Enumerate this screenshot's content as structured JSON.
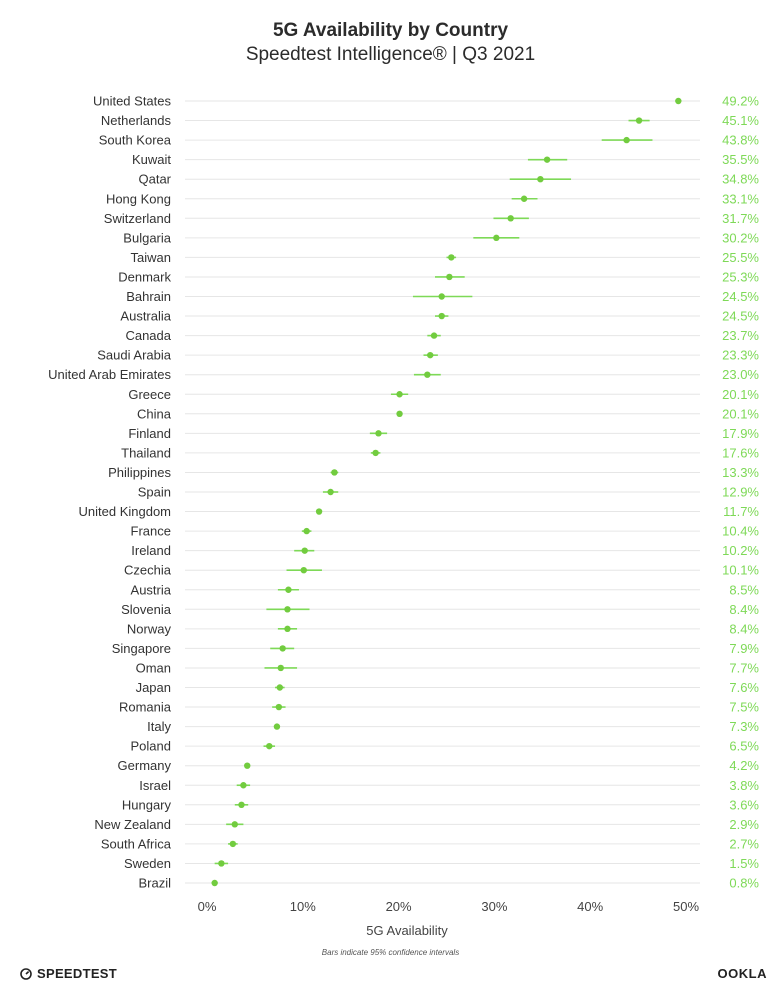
{
  "header": {
    "title": "5G Availability by Country",
    "subtitle": "Speedtest Intelligence® | Q3 2021"
  },
  "footer": {
    "note": "Bars indicate 95% confidence intervals",
    "brand_left": "SPEEDTEST",
    "brand_right": "OOKLA"
  },
  "colors": {
    "accent": "#7ed957",
    "point": "#72cc3f",
    "label_text": "#333333",
    "grid": "#e6e6e6"
  },
  "chart_data": {
    "type": "scatter",
    "title": "5G Availability by Country",
    "subtitle": "Speedtest Intelligence® | Q3 2021",
    "xlabel": "5G Availability",
    "ylabel": "",
    "xlim": [
      0,
      50
    ],
    "x_ticks": [
      "0%",
      "10%",
      "20%",
      "30%",
      "40%",
      "50%"
    ],
    "grid": "horizontal",
    "error_bars": "95% confidence intervals",
    "countries": [
      {
        "name": "United States",
        "value": 49.2,
        "label": "49.2%",
        "ci": [
          49.0,
          49.4
        ]
      },
      {
        "name": "Netherlands",
        "value": 45.1,
        "label": "45.1%",
        "ci": [
          44.0,
          46.2
        ]
      },
      {
        "name": "South Korea",
        "value": 43.8,
        "label": "43.8%",
        "ci": [
          41.2,
          46.5
        ]
      },
      {
        "name": "Kuwait",
        "value": 35.5,
        "label": "35.5%",
        "ci": [
          33.5,
          37.6
        ]
      },
      {
        "name": "Qatar",
        "value": 34.8,
        "label": "34.8%",
        "ci": [
          31.6,
          38.0
        ]
      },
      {
        "name": "Hong Kong",
        "value": 33.1,
        "label": "33.1%",
        "ci": [
          31.8,
          34.5
        ]
      },
      {
        "name": "Switzerland",
        "value": 31.7,
        "label": "31.7%",
        "ci": [
          29.9,
          33.6
        ]
      },
      {
        "name": "Bulgaria",
        "value": 30.2,
        "label": "30.2%",
        "ci": [
          27.8,
          32.6
        ]
      },
      {
        "name": "Taiwan",
        "value": 25.5,
        "label": "25.5%",
        "ci": [
          25.0,
          26.0
        ]
      },
      {
        "name": "Denmark",
        "value": 25.3,
        "label": "25.3%",
        "ci": [
          23.8,
          26.9
        ]
      },
      {
        "name": "Bahrain",
        "value": 24.5,
        "label": "24.5%",
        "ci": [
          21.5,
          27.7
        ]
      },
      {
        "name": "Australia",
        "value": 24.5,
        "label": "24.5%",
        "ci": [
          23.8,
          25.2
        ]
      },
      {
        "name": "Canada",
        "value": 23.7,
        "label": "23.7%",
        "ci": [
          23.0,
          24.4
        ]
      },
      {
        "name": "Saudi Arabia",
        "value": 23.3,
        "label": "23.3%",
        "ci": [
          22.6,
          24.1
        ]
      },
      {
        "name": "United Arab Emirates",
        "value": 23.0,
        "label": "23.0%",
        "ci": [
          21.6,
          24.4
        ]
      },
      {
        "name": "Greece",
        "value": 20.1,
        "label": "20.1%",
        "ci": [
          19.2,
          21.0
        ]
      },
      {
        "name": "China",
        "value": 20.1,
        "label": "20.1%",
        "ci": [
          19.9,
          20.3
        ]
      },
      {
        "name": "Finland",
        "value": 17.9,
        "label": "17.9%",
        "ci": [
          17.0,
          18.8
        ]
      },
      {
        "name": "Thailand",
        "value": 17.6,
        "label": "17.6%",
        "ci": [
          17.1,
          18.1
        ]
      },
      {
        "name": "Philippines",
        "value": 13.3,
        "label": "13.3%",
        "ci": [
          12.9,
          13.7
        ]
      },
      {
        "name": "Spain",
        "value": 12.9,
        "label": "12.9%",
        "ci": [
          12.1,
          13.7
        ]
      },
      {
        "name": "United Kingdom",
        "value": 11.7,
        "label": "11.7%",
        "ci": [
          11.5,
          11.9
        ]
      },
      {
        "name": "France",
        "value": 10.4,
        "label": "10.4%",
        "ci": [
          9.9,
          10.9
        ]
      },
      {
        "name": "Ireland",
        "value": 10.2,
        "label": "10.2%",
        "ci": [
          9.1,
          11.2
        ]
      },
      {
        "name": "Czechia",
        "value": 10.1,
        "label": "10.1%",
        "ci": [
          8.3,
          12.0
        ]
      },
      {
        "name": "Austria",
        "value": 8.5,
        "label": "8.5%",
        "ci": [
          7.4,
          9.6
        ]
      },
      {
        "name": "Slovenia",
        "value": 8.4,
        "label": "8.4%",
        "ci": [
          6.2,
          10.7
        ]
      },
      {
        "name": "Norway",
        "value": 8.4,
        "label": "8.4%",
        "ci": [
          7.4,
          9.4
        ]
      },
      {
        "name": "Singapore",
        "value": 7.9,
        "label": "7.9%",
        "ci": [
          6.6,
          9.1
        ]
      },
      {
        "name": "Oman",
        "value": 7.7,
        "label": "7.7%",
        "ci": [
          6.0,
          9.4
        ]
      },
      {
        "name": "Japan",
        "value": 7.6,
        "label": "7.6%",
        "ci": [
          7.1,
          8.1
        ]
      },
      {
        "name": "Romania",
        "value": 7.5,
        "label": "7.5%",
        "ci": [
          6.8,
          8.2
        ]
      },
      {
        "name": "Italy",
        "value": 7.3,
        "label": "7.3%",
        "ci": [
          7.1,
          7.5
        ]
      },
      {
        "name": "Poland",
        "value": 6.5,
        "label": "6.5%",
        "ci": [
          5.9,
          7.1
        ]
      },
      {
        "name": "Germany",
        "value": 4.2,
        "label": "4.2%",
        "ci": [
          4.0,
          4.4
        ]
      },
      {
        "name": "Israel",
        "value": 3.8,
        "label": "3.8%",
        "ci": [
          3.1,
          4.5
        ]
      },
      {
        "name": "Hungary",
        "value": 3.6,
        "label": "3.6%",
        "ci": [
          2.9,
          4.3
        ]
      },
      {
        "name": "New Zealand",
        "value": 2.9,
        "label": "2.9%",
        "ci": [
          2.0,
          3.8
        ]
      },
      {
        "name": "South Africa",
        "value": 2.7,
        "label": "2.7%",
        "ci": [
          2.2,
          3.2
        ]
      },
      {
        "name": "Sweden",
        "value": 1.5,
        "label": "1.5%",
        "ci": [
          0.8,
          2.2
        ]
      },
      {
        "name": "Brazil",
        "value": 0.8,
        "label": "0.8%",
        "ci": [
          0.6,
          1.0
        ]
      }
    ]
  }
}
